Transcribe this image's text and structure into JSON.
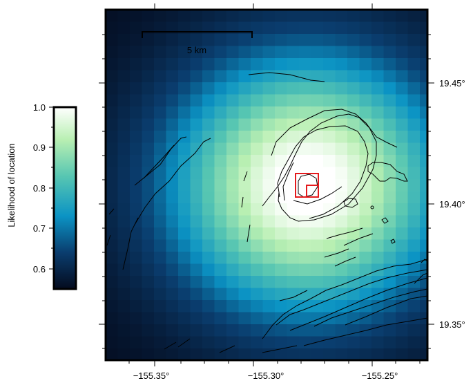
{
  "map": {
    "x_ticks": [
      "−155.35°",
      "−155.30°",
      "−155.25°"
    ],
    "y_ticks": [
      "19.45°",
      "19.40°",
      "19.35°"
    ],
    "scale_bar": {
      "label": "5 km"
    }
  },
  "colorbar": {
    "title": "Likelihood of location",
    "ticks": [
      "1.0",
      "0.9",
      "0.8",
      "0.7",
      "0.6"
    ],
    "range": [
      0.55,
      1.0
    ],
    "colormap": [
      "#040b1e",
      "#0a3d6e",
      "#0b93c4",
      "#57c6b2",
      "#b8efb2",
      "#ffffff"
    ]
  },
  "markers": {
    "color": "#e41a1c"
  }
}
